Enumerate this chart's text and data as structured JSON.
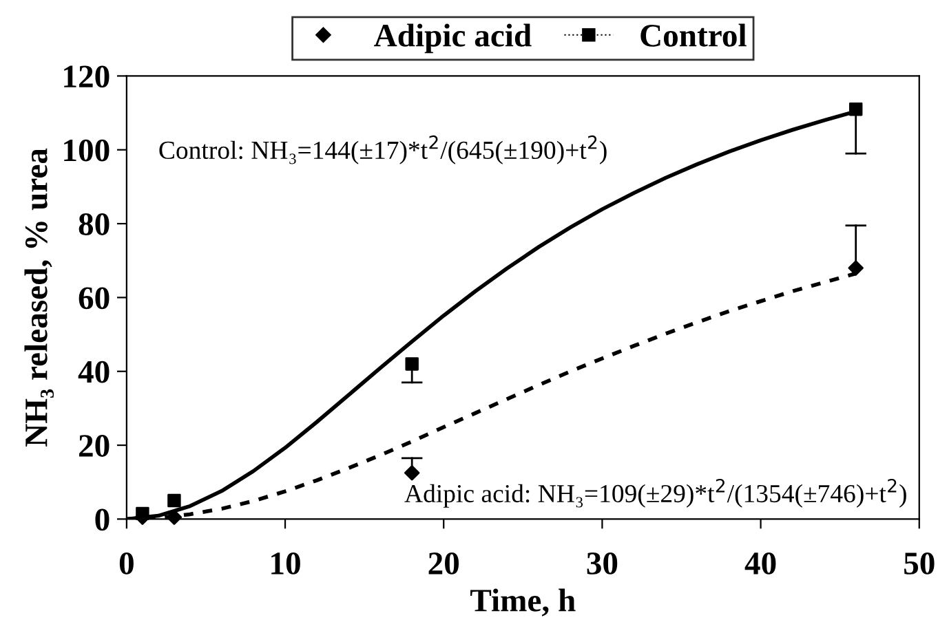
{
  "chart_data": {
    "type": "scatter",
    "xlabel": "Time, h",
    "ylabel": "NH₃ released, % urea",
    "xlim": [
      0,
      50
    ],
    "xticks": [
      0,
      10,
      20,
      30,
      40,
      50
    ],
    "ylim": [
      0,
      120
    ],
    "yticks": [
      0,
      20,
      40,
      60,
      80,
      100,
      120
    ],
    "grid": false,
    "legend": "top",
    "series": [
      {
        "name": "Adipic acid",
        "marker": "diamond",
        "color": "#000000",
        "x": [
          1,
          3,
          18,
          46
        ],
        "values": [
          0.5,
          0.5,
          12.5,
          68
        ],
        "errors": [
          null,
          null,
          [
            12.5,
            16.5
          ],
          [
            68,
            79.5
          ]
        ]
      },
      {
        "name": "Control",
        "marker": "square",
        "line_style": "dotted",
        "color": "#000000",
        "x": [
          1,
          3,
          18,
          46
        ],
        "values": [
          1.5,
          5,
          42,
          111
        ],
        "errors": [
          null,
          null,
          [
            37,
            42
          ],
          [
            99,
            111
          ]
        ]
      },
      {
        "type": "line",
        "line_style": "solid",
        "marker": "none",
        "color": "#000000",
        "x": [
          0,
          2,
          4,
          6,
          8,
          10,
          12,
          14,
          16,
          18,
          20,
          22,
          24,
          26,
          28,
          30,
          32,
          34,
          36,
          38,
          40,
          42,
          44,
          46
        ],
        "values": [
          0,
          0.9,
          3.5,
          7.6,
          13.0,
          19.3,
          26.3,
          33.6,
          40.9,
          48.1,
          55.1,
          61.7,
          67.9,
          73.7,
          79.0,
          83.9,
          88.3,
          92.4,
          96.1,
          99.5,
          102.6,
          105.4,
          108.0,
          110.4
        ]
      },
      {
        "type": "line",
        "line_style": "dashed",
        "marker": "none",
        "color": "#000000",
        "x": [
          0,
          2,
          4,
          6,
          8,
          10,
          12,
          14,
          16,
          18,
          20,
          22,
          24,
          26,
          28,
          30,
          32,
          34,
          36,
          38,
          40,
          42,
          44,
          46
        ],
        "values": [
          0,
          0.3,
          1.3,
          2.8,
          4.9,
          7.5,
          10.5,
          13.8,
          17.3,
          21.0,
          24.9,
          28.7,
          32.5,
          36.3,
          40.0,
          43.5,
          46.9,
          50.2,
          53.3,
          56.3,
          59.0,
          61.7,
          64.1,
          66.5
        ]
      }
    ],
    "annotations": [
      "Control: NH₃=144(±17)*t$^{2}$/(645(±190)+t$^{2}$)",
      "Adipic acid: NH₃=109(±29)*t$^{2}$/(1354(±746)+t$^{2}$)"
    ]
  }
}
